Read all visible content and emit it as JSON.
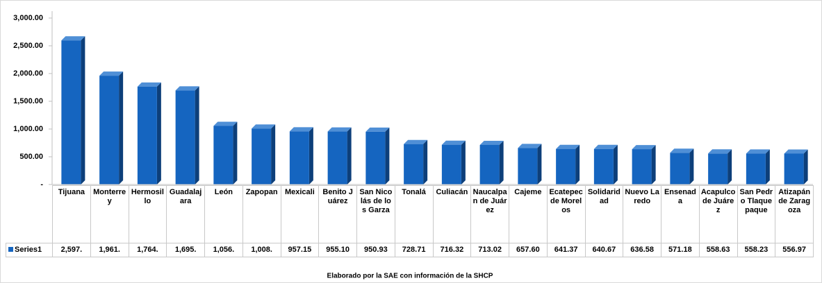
{
  "chart_data": {
    "type": "bar3d",
    "categories": [
      "Tijuana",
      "Monterrey",
      "Hermosillo",
      "Guadalajara",
      "León",
      "Zapopan",
      "Mexicali",
      "Benito Juárez",
      "San Nicolás de los Garza",
      "Tonalá",
      "Culiacán",
      "Naucalpan de Juárez",
      "Cajeme",
      "Ecatepec de Morelos",
      "Solidaridad",
      "Nuevo Laredo",
      "Ensenada",
      "Acapulco de Juárez",
      "San Pedro Tlaquepaque",
      "Atizapán de Zaragoza"
    ],
    "series": [
      {
        "name": "Series1",
        "color": "#1565c0",
        "values": [
          2597,
          1961,
          1764,
          1695,
          1056,
          1008,
          957.15,
          955.1,
          950.93,
          728.71,
          716.32,
          713.02,
          657.6,
          641.37,
          640.67,
          636.58,
          571.18,
          558.63,
          558.23,
          556.97
        ],
        "value_labels": [
          "2,597.",
          "1,961.",
          "1,764.",
          "1,695.",
          "1,056.",
          "1,008.",
          "957.15",
          "955.10",
          "950.93",
          "728.71",
          "716.32",
          "713.02",
          "657.60",
          "641.37",
          "640.67",
          "636.58",
          "571.18",
          "558.63",
          "558.23",
          "556.97"
        ]
      }
    ],
    "ylim": [
      0,
      3000
    ],
    "yticks": [
      {
        "value": 0,
        "label": "-"
      },
      {
        "value": 500,
        "label": "500.00"
      },
      {
        "value": 1000,
        "label": "1,000.00"
      },
      {
        "value": 1500,
        "label": "1,500.00"
      },
      {
        "value": 2000,
        "label": "2,000.00"
      },
      {
        "value": 2500,
        "label": "2,500.00"
      },
      {
        "value": 3000,
        "label": "3,000.00"
      }
    ],
    "grid": false,
    "source": "Elaborado por la SAE con información de la SHCP"
  }
}
